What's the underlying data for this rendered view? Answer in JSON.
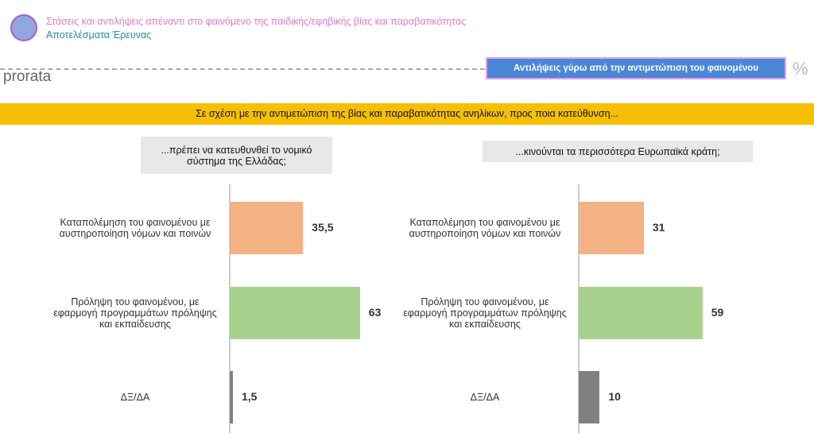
{
  "header": {
    "title": "Στάσεις και αντιλήψεις απέναντι στο φαινόμενο της παιδικής/εφηβικής βίας και παραβατικότητας",
    "subtitle": "Αποτελέσματα Έρευνας",
    "logo": "prorata",
    "section_label": "Αντιλήψεις γύρω από την αντιμετώπιση του φαινομένου",
    "unit": "%"
  },
  "banner": "Σε σχέση με την αντιμετώπιση της βίας και παραβατικότητας ανηλίκων, προς ποια κατεύθυνση...",
  "chart_data": [
    {
      "type": "bar",
      "orientation": "horizontal",
      "title": "...πρέπει να κατευθυνθεί το νομικό σύστημα της Ελλάδας;",
      "categories": [
        "Καταπολέμηση του φαινομένου με αυστηροποίηση νόμων και ποινών",
        "Πρόληψη του φαινομένου, με εφαρμογή προγραμμάτων πρόληψης και εκπαίδευσης",
        "ΔΞ/ΔΑ"
      ],
      "values": [
        35.5,
        63,
        1.5
      ],
      "labels": [
        "35,5",
        "63",
        "1,5"
      ],
      "colors": [
        "#f4b183",
        "#a9d18e",
        "#808080"
      ]
    },
    {
      "type": "bar",
      "orientation": "horizontal",
      "title": "...κινούνται τα περισσότερα Ευρωπαϊκά κράτη;",
      "categories": [
        "Καταπολέμηση του φαινομένου με αυστηροποίηση νόμων και ποινών",
        "Πρόληψη του φαινομένου, με εφαρμογή προγραμμάτων πρόληψης και εκπαίδευσης",
        "ΔΞ/ΔΑ"
      ],
      "values": [
        31,
        59,
        10
      ],
      "labels": [
        "31",
        "59",
        "10"
      ],
      "colors": [
        "#f4b183",
        "#a9d18e",
        "#808080"
      ]
    }
  ]
}
